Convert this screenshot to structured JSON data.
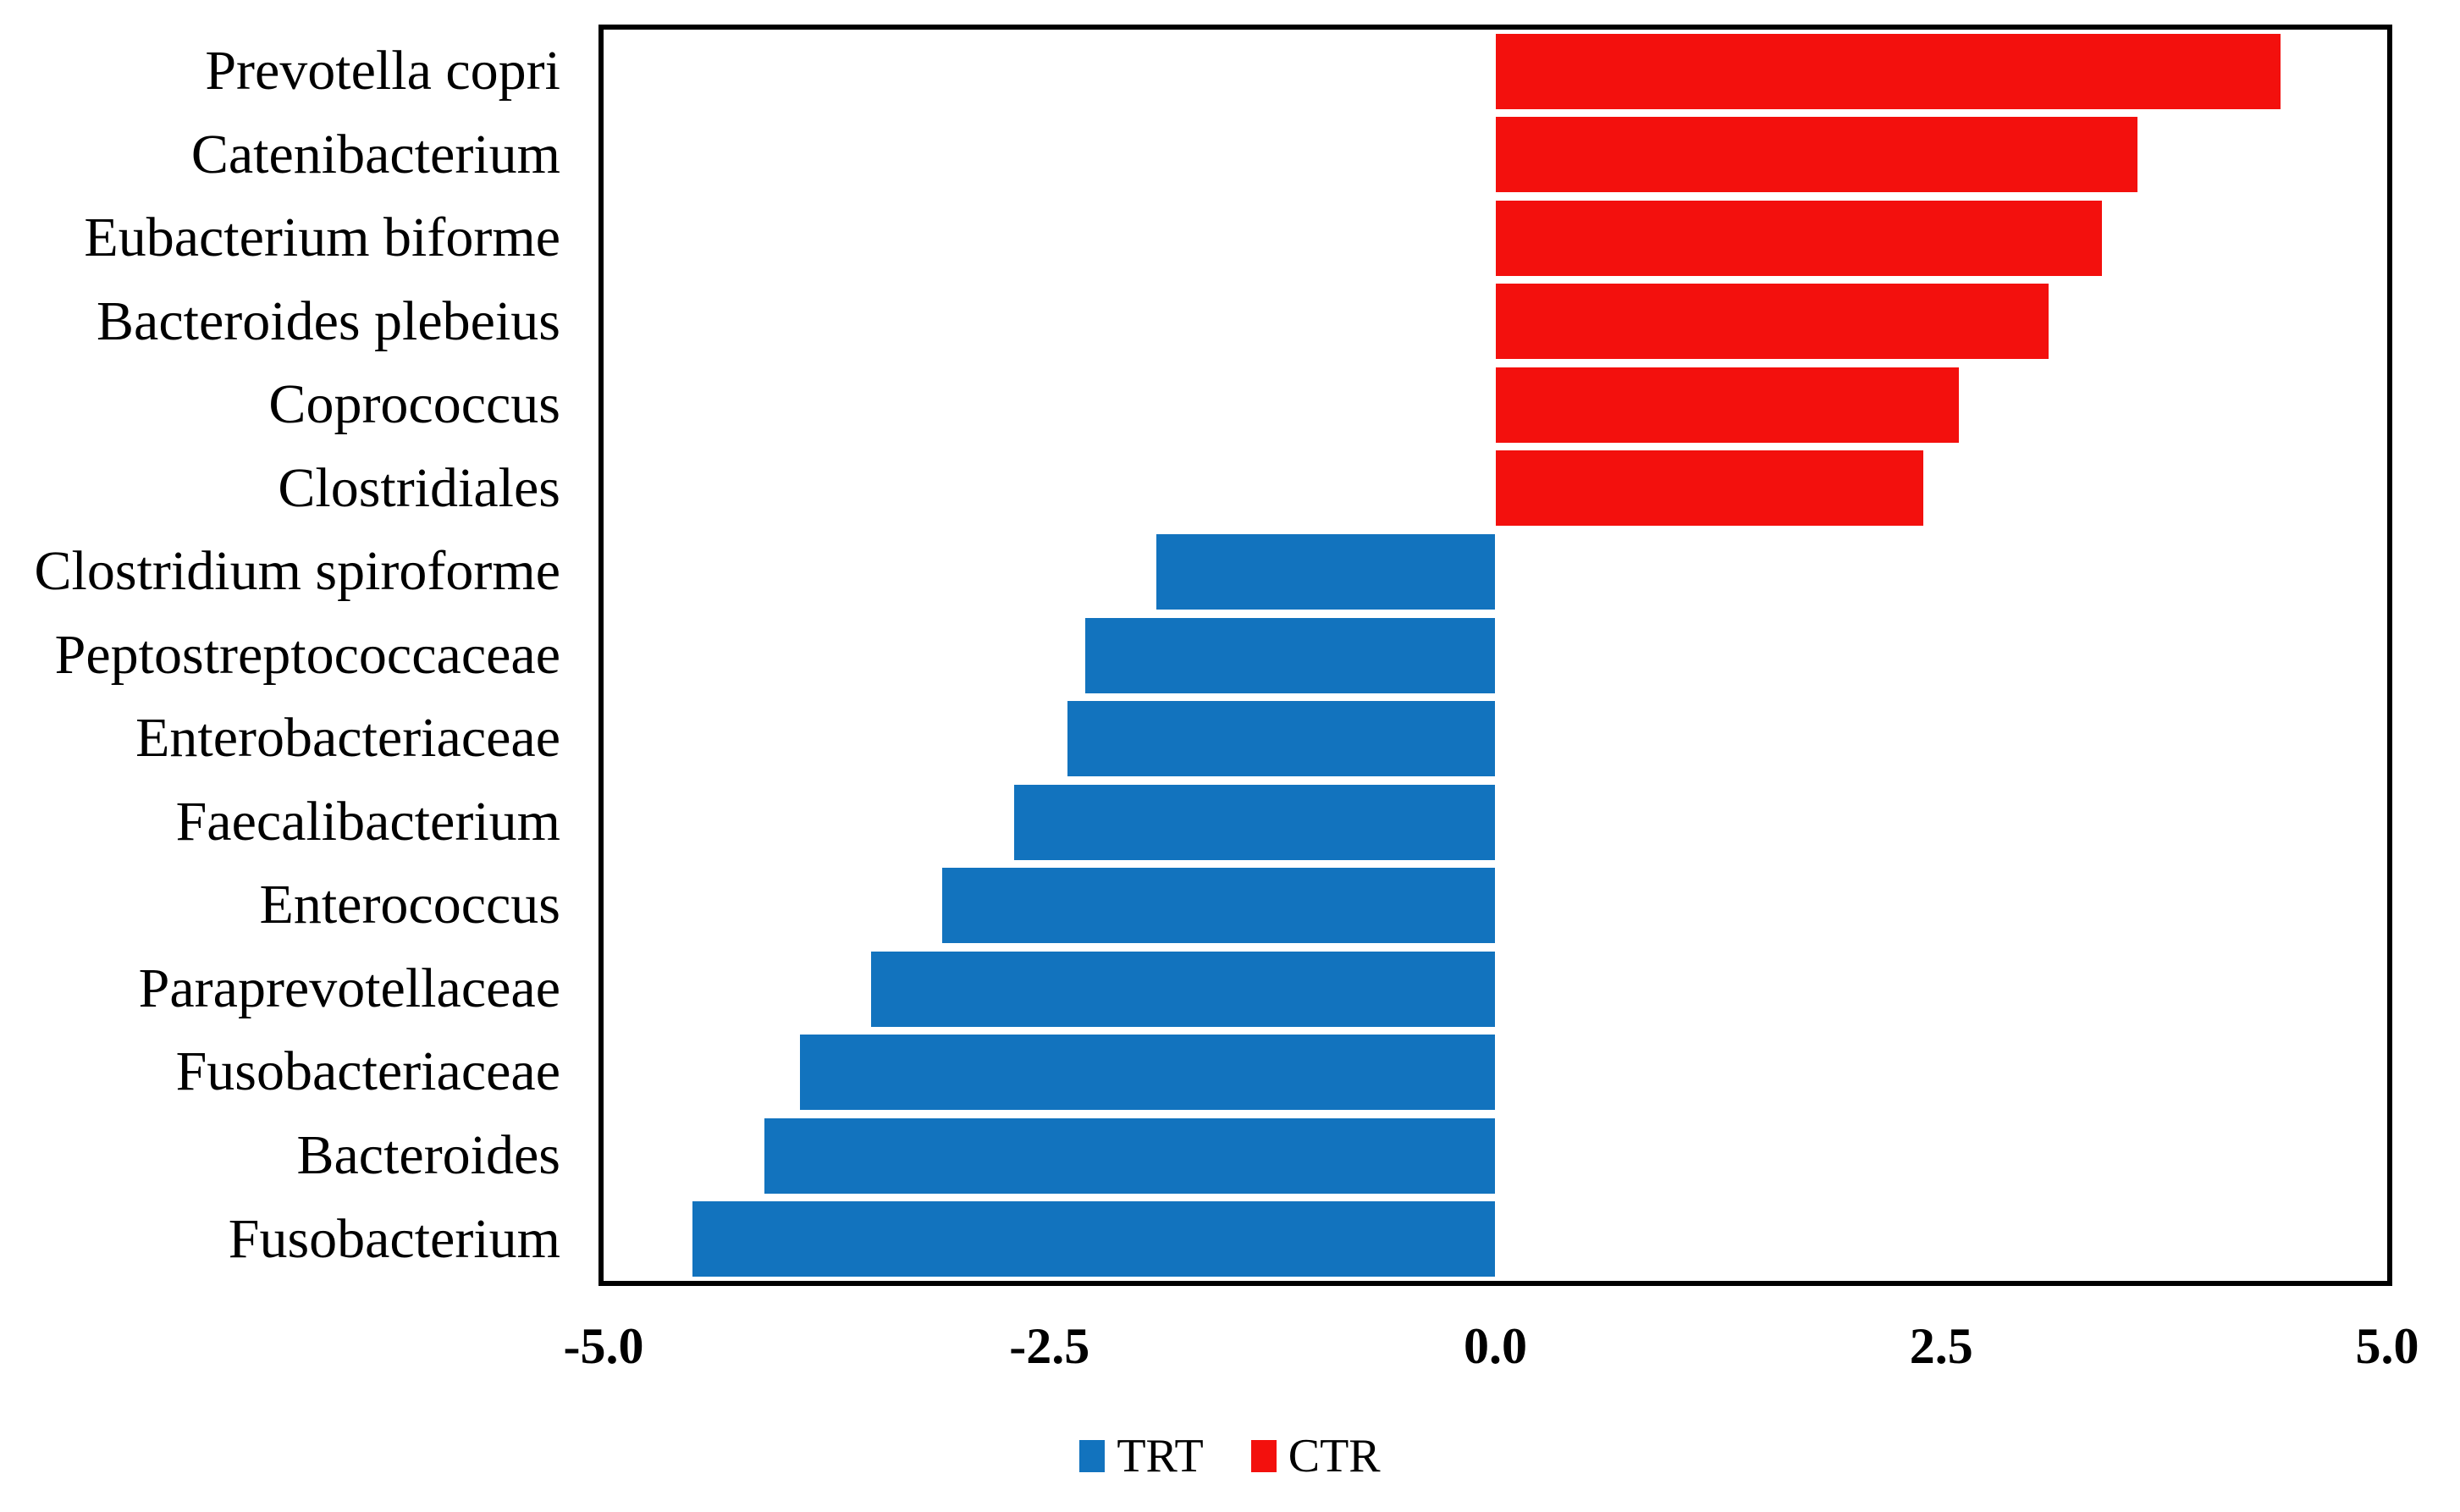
{
  "chart_data": {
    "type": "bar",
    "orientation": "horizontal",
    "title": "",
    "xlabel": "",
    "ylabel": "",
    "xlim": [
      -5.0,
      5.0
    ],
    "xticks": [
      {
        "value": -5.0,
        "label": "-5.0"
      },
      {
        "value": -2.5,
        "label": "-2.5"
      },
      {
        "value": 0.0,
        "label": "0.0"
      },
      {
        "value": 2.5,
        "label": "2.5"
      },
      {
        "value": 5.0,
        "label": "5.0"
      }
    ],
    "grid": false,
    "legend_position": "bottom-center",
    "categories": [
      "Prevotella copri",
      "Catenibacterium",
      "Eubacterium biforme",
      "Bacteroides plebeius",
      "Coprococcus",
      "Clostridiales",
      "Clostridium spiroforme",
      "Peptostreptococcaceae",
      "Enterobacteriaceae",
      "Faecalibacterium",
      "Enterococcus",
      "Paraprevotellaceae",
      "Fusobacteriaceae",
      "Bacteroides",
      "Fusobacterium"
    ],
    "bars": [
      {
        "category": "Prevotella copri",
        "value": 4.4,
        "series": "CTR"
      },
      {
        "category": "Catenibacterium",
        "value": 3.6,
        "series": "CTR"
      },
      {
        "category": "Eubacterium biforme",
        "value": 3.4,
        "series": "CTR"
      },
      {
        "category": "Bacteroides plebeius",
        "value": 3.1,
        "series": "CTR"
      },
      {
        "category": "Coprococcus",
        "value": 2.6,
        "series": "CTR"
      },
      {
        "category": "Clostridiales",
        "value": 2.4,
        "series": "CTR"
      },
      {
        "category": "Clostridium spiroforme",
        "value": -1.9,
        "series": "TRT"
      },
      {
        "category": "Peptostreptococcaceae",
        "value": -2.3,
        "series": "TRT"
      },
      {
        "category": "Enterobacteriaceae",
        "value": -2.4,
        "series": "TRT"
      },
      {
        "category": "Faecalibacterium",
        "value": -2.7,
        "series": "TRT"
      },
      {
        "category": "Enterococcus",
        "value": -3.1,
        "series": "TRT"
      },
      {
        "category": "Paraprevotellaceae",
        "value": -3.5,
        "series": "TRT"
      },
      {
        "category": "Fusobacteriaceae",
        "value": -3.9,
        "series": "TRT"
      },
      {
        "category": "Bacteroides",
        "value": -4.1,
        "series": "TRT"
      },
      {
        "category": "Fusobacterium",
        "value": -4.5,
        "series": "TRT"
      }
    ],
    "series": [
      {
        "name": "TRT",
        "color": "#1273BE"
      },
      {
        "name": "CTR",
        "color": "#F3100D"
      }
    ],
    "legend": [
      {
        "label": "TRT",
        "color": "#1273BE"
      },
      {
        "label": "CTR",
        "color": "#F3100D"
      }
    ],
    "colors": {
      "axis_border": "#000000",
      "background": "#FFFFFF",
      "text": "#000000"
    }
  }
}
